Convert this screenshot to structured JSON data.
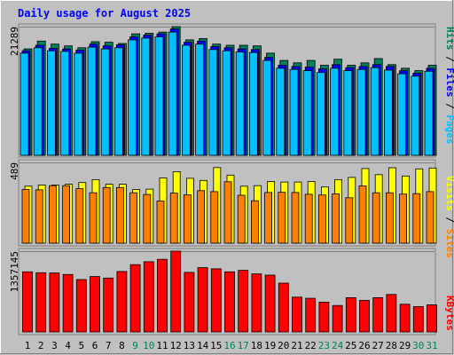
{
  "colors": {
    "background": "#c0c0c0",
    "panel": "#c0c0c0",
    "title": "#0000ff",
    "hits": "#00805c",
    "files": "#0000ff",
    "pages": "#00c0ff",
    "visits": "#ffff00",
    "sites": "#ff8000",
    "kbytes": "#ff0000",
    "weekday_label": "#000000",
    "weekend_label": "#00805c"
  },
  "chart_data": [
    {
      "type": "bar",
      "title": "Daily usage for August 2025",
      "panel": "requests",
      "ymax_label": "21289",
      "ylim": [
        0,
        21289
      ],
      "legend": [
        "Pages",
        "Files",
        "Hits"
      ],
      "categories": [
        "1",
        "2",
        "3",
        "4",
        "5",
        "6",
        "7",
        "8",
        "9",
        "10",
        "11",
        "12",
        "13",
        "14",
        "15",
        "16",
        "17",
        "18",
        "19",
        "20",
        "21",
        "22",
        "23",
        "24",
        "25",
        "26",
        "27",
        "28",
        "29",
        "30",
        "31"
      ],
      "weekend_days": [
        "9",
        "10",
        "16",
        "17",
        "23",
        "24",
        "30",
        "31"
      ],
      "series": [
        {
          "name": "Hits",
          "values": [
            17600,
            18900,
            18400,
            18100,
            17800,
            18800,
            18700,
            18500,
            20100,
            20200,
            20400,
            21289,
            19100,
            19300,
            18400,
            18200,
            18200,
            18100,
            16900,
            15700,
            15300,
            15700,
            14900,
            15900,
            14900,
            15300,
            16000,
            15000,
            14400,
            14000,
            14900
          ]
        },
        {
          "name": "Files",
          "values": [
            17300,
            18200,
            17700,
            17600,
            17400,
            18400,
            18100,
            18300,
            19600,
            19900,
            20100,
            20900,
            18700,
            18900,
            18000,
            17800,
            17600,
            17500,
            16200,
            14900,
            14700,
            14600,
            14300,
            15000,
            14500,
            14700,
            15000,
            14700,
            14000,
            13600,
            14400
          ]
        },
        {
          "name": "Pages",
          "values": [
            16900,
            17800,
            17300,
            17200,
            16900,
            17900,
            17600,
            17800,
            19100,
            19400,
            19600,
            20400,
            18200,
            18400,
            17500,
            17300,
            17100,
            17000,
            15700,
            14400,
            14200,
            14000,
            13700,
            14400,
            14000,
            14200,
            14500,
            14100,
            13500,
            13100,
            13900
          ]
        }
      ]
    },
    {
      "type": "bar",
      "panel": "visits",
      "ymax_label": "489",
      "ylim": [
        0,
        489
      ],
      "legend": [
        "Sites",
        "Visits"
      ],
      "categories": [
        "1",
        "2",
        "3",
        "4",
        "5",
        "6",
        "7",
        "8",
        "9",
        "10",
        "11",
        "12",
        "13",
        "14",
        "15",
        "16",
        "17",
        "18",
        "19",
        "20",
        "21",
        "22",
        "23",
        "24",
        "25",
        "26",
        "27",
        "28",
        "29",
        "30",
        "31"
      ],
      "series": [
        {
          "name": "Visits",
          "values": [
            345,
            352,
            352,
            357,
            367,
            385,
            357,
            357,
            325,
            327,
            395,
            433,
            393,
            380,
            458,
            412,
            345,
            348,
            373,
            370,
            370,
            373,
            340,
            385,
            398,
            452,
            415,
            457,
            407,
            450,
            455
          ]
        },
        {
          "name": "Sites",
          "values": [
            325,
            323,
            348,
            348,
            330,
            305,
            337,
            337,
            305,
            295,
            255,
            303,
            293,
            318,
            312,
            372,
            290,
            257,
            307,
            308,
            307,
            296,
            292,
            298,
            275,
            347,
            305,
            305,
            297,
            300,
            312
          ]
        }
      ]
    },
    {
      "type": "bar",
      "panel": "kbytes",
      "ymax_label": "1357145",
      "ylim": [
        0,
        1357145
      ],
      "legend": [
        "KBytes"
      ],
      "categories": [
        "1",
        "2",
        "3",
        "4",
        "5",
        "6",
        "7",
        "8",
        "9",
        "10",
        "11",
        "12",
        "13",
        "14",
        "15",
        "16",
        "17",
        "18",
        "19",
        "20",
        "21",
        "22",
        "23",
        "24",
        "25",
        "26",
        "27",
        "28",
        "29",
        "30",
        "31"
      ],
      "series": [
        {
          "name": "KBytes",
          "values": [
            1010000,
            995000,
            990000,
            965000,
            880000,
            930000,
            905000,
            1015000,
            1130000,
            1180000,
            1220000,
            1357145,
            1000000,
            1080000,
            1060000,
            1010000,
            1035000,
            975000,
            955000,
            820000,
            585000,
            565000,
            500000,
            445000,
            575000,
            530000,
            575000,
            630000,
            465000,
            425000,
            455000
          ]
        }
      ]
    }
  ]
}
